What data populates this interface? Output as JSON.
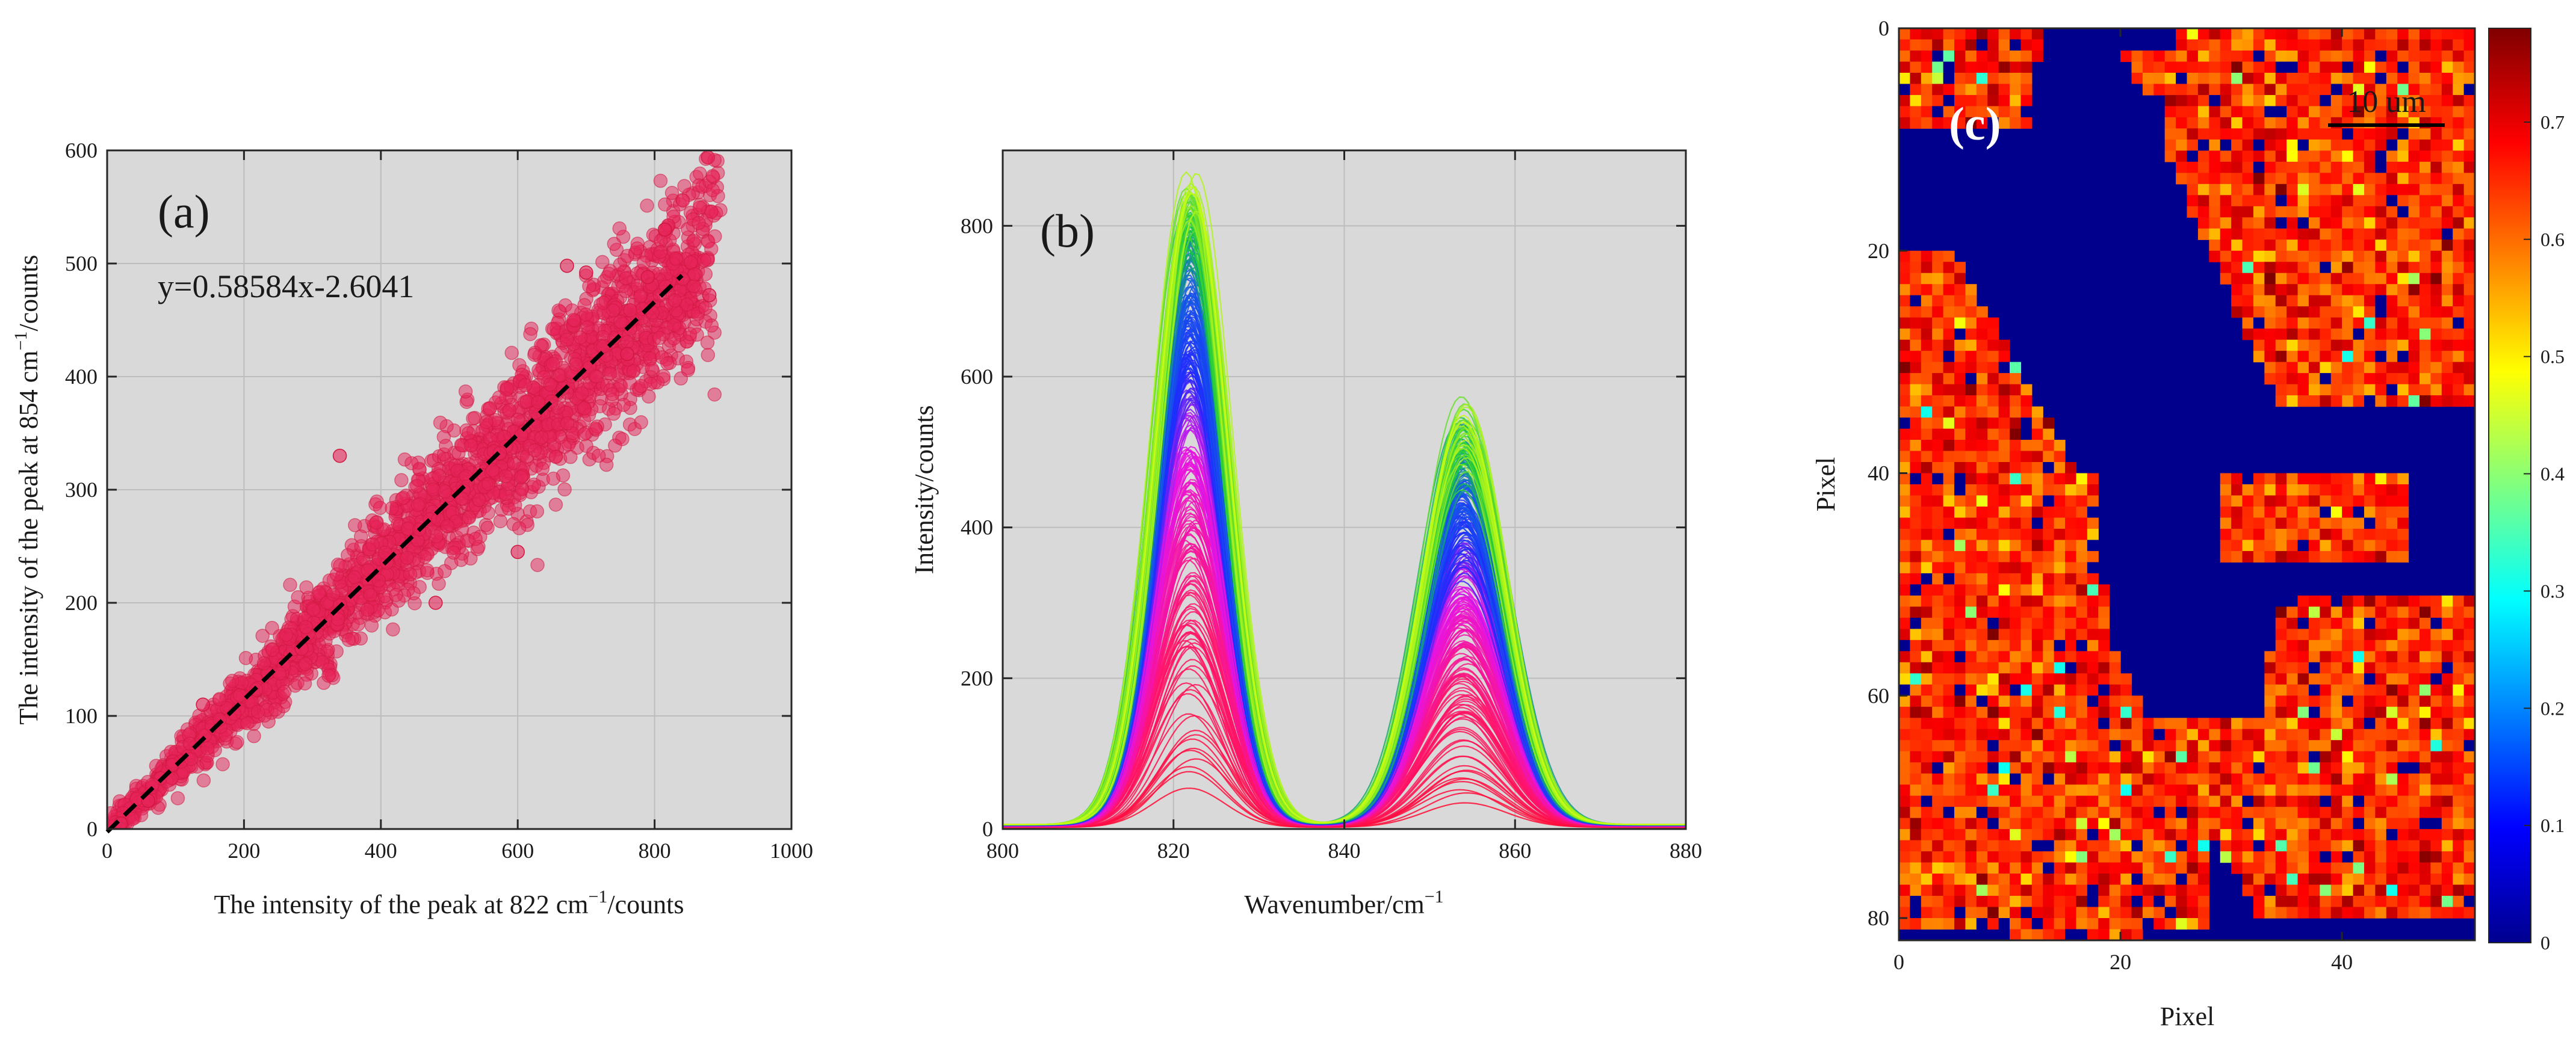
{
  "colors": {
    "plot_bg": "#d9d9d9",
    "grid": "#bdbdbd",
    "axis": "#262626",
    "scatter_fill": "#e8245a",
    "fit_line": "#000000",
    "heatmap_bg": "#00008c"
  },
  "chart_data": [
    {
      "id": "a",
      "type": "scatter",
      "panel_label": "(a)",
      "equation": "y=0.58584x-2.6041",
      "xlabel_prefix": "The intensity of the peak at 822 cm",
      "xlabel_sup": "−1",
      "xlabel_suffix": "/counts",
      "ylabel_prefix": "The intensity of the peak at 854 cm",
      "ylabel_sup": "−1",
      "ylabel_suffix": "/counts",
      "xlim": [
        0,
        1000
      ],
      "ylim": [
        0,
        600
      ],
      "xticks": [
        0,
        200,
        400,
        600,
        800,
        1000
      ],
      "yticks": [
        0,
        100,
        200,
        300,
        400,
        500,
        600
      ],
      "fit": {
        "slope": 0.58584,
        "intercept": -2.6041,
        "x_range": [
          0,
          840
        ]
      },
      "points_summary": {
        "count": 2500,
        "x_range": [
          0,
          880
        ],
        "y_range": [
          0,
          530
        ],
        "relation": "y ≈ 0.58584x − 2.6041"
      },
      "series_highlights": [
        {
          "x": 815,
          "y": 530
        },
        {
          "x": 880,
          "y": 472
        },
        {
          "x": 672,
          "y": 498
        },
        {
          "x": 700,
          "y": 492
        },
        {
          "x": 790,
          "y": 488
        },
        {
          "x": 760,
          "y": 420
        },
        {
          "x": 480,
          "y": 200
        },
        {
          "x": 600,
          "y": 245
        },
        {
          "x": 340,
          "y": 330
        },
        {
          "x": 140,
          "y": 110
        },
        {
          "x": 60,
          "y": 25
        },
        {
          "x": 20,
          "y": 5
        }
      ]
    },
    {
      "id": "b",
      "type": "line",
      "panel_label": "(b)",
      "xlabel_prefix": "Wavenumber/cm",
      "xlabel_sup": "−1",
      "ylabel": "Intensity/counts",
      "xlim": [
        800,
        880
      ],
      "ylim": [
        0,
        900
      ],
      "xticks": [
        800,
        820,
        840,
        860,
        880
      ],
      "yticks": [
        0,
        200,
        400,
        600,
        800
      ],
      "peaks": [
        {
          "center": 822,
          "max_intensity": 880,
          "width_sigma": 4.2
        },
        {
          "center": 854,
          "max_intensity": 595,
          "width_sigma": 4.8
        }
      ],
      "valley": {
        "x": 840,
        "max_intensity": 145
      },
      "series_summary": {
        "count": 300,
        "color_scale": "intensity: red (low) → magenta → blue → green → yellow (high)"
      }
    },
    {
      "id": "c",
      "type": "heatmap",
      "panel_label": "(c)",
      "scale_bar": "10 um",
      "xlabel": "Pixel",
      "ylabel": "Pixel",
      "xlim": [
        0,
        52
      ],
      "ylim": [
        0,
        82
      ],
      "xticks": [
        0,
        20,
        40
      ],
      "yticks": [
        0,
        20,
        40,
        60,
        80
      ],
      "grid_size": [
        52,
        82
      ],
      "colorbar": {
        "min": 0,
        "max": 0.78,
        "ticks": [
          0,
          0.1,
          0.2,
          0.3,
          0.4,
          0.5,
          0.6,
          0.7
        ],
        "colormap": "jet"
      },
      "typical_value_in_particles": 0.65,
      "background_value": 0
    }
  ]
}
